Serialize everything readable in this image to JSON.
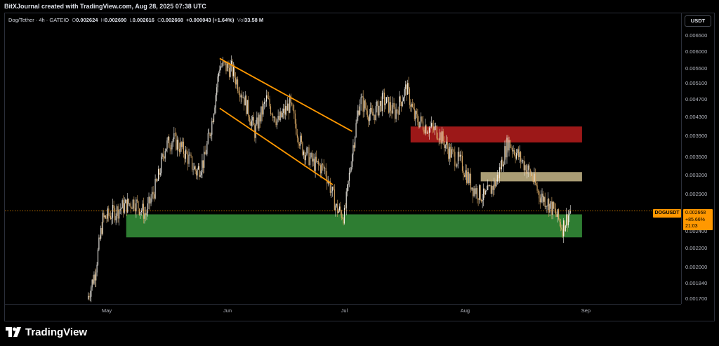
{
  "header": {
    "credit": "BitXJournal created with TradingView.com, Aug 28, 2025 07:38 UTC"
  },
  "legend": {
    "symbol": "Dog/Tether · 4h · GATEIO",
    "o_label": "O",
    "o_value": "0.002624",
    "h_label": "H",
    "h_value": "0.002690",
    "l_label": "L",
    "l_value": "0.002616",
    "c_label": "C",
    "c_value": "0.002668",
    "change": "+0.000043 (+1.64%)",
    "vol_label": "Vol",
    "vol_value": "33.58 M"
  },
  "axis": {
    "currency_button": "USDT",
    "y_ticks": [
      "0.006500",
      "0.006000",
      "0.005500",
      "0.005100",
      "0.004700",
      "0.004300",
      "0.003900",
      "0.003500",
      "0.003200",
      "0.002900",
      "0.002400",
      "0.002200",
      "0.002000",
      "0.001840",
      "0.001700"
    ],
    "x_ticks": [
      "May",
      "Jun",
      "Jul",
      "Aug",
      "Sep"
    ]
  },
  "price_marker": {
    "symbol_tag": "DOGUSDT",
    "price": "0.002668",
    "change_pct": "+85.66%",
    "countdown": "21:03"
  },
  "brand": {
    "name": "TradingView"
  },
  "colors": {
    "candle": "#e8e4dc",
    "channel": "#ff9800",
    "support_zone": "#2e7d32",
    "resistance_zone": "#b71c1c",
    "mid_zone": "#c8b88a",
    "price_line": "#ff9800"
  },
  "chart_data": {
    "type": "candlestick",
    "title": "Dog/Tether · 4h · GATEIO",
    "xlabel": "",
    "ylabel": "",
    "x_ticks": [
      "May",
      "Jun",
      "Jul",
      "Aug",
      "Sep"
    ],
    "scale": "log",
    "ylim": [
      0.00166,
      0.0073
    ],
    "close_path": [
      {
        "x": "Apr 26",
        "y": 0.0017
      },
      {
        "x": "Apr 28",
        "y": 0.00195
      },
      {
        "x": "Apr 30",
        "y": 0.00255
      },
      {
        "x": "May 2",
        "y": 0.00262
      },
      {
        "x": "May 5",
        "y": 0.00272
      },
      {
        "x": "May 8",
        "y": 0.0028
      },
      {
        "x": "May 11",
        "y": 0.00262
      },
      {
        "x": "May 14",
        "y": 0.0031
      },
      {
        "x": "May 16",
        "y": 0.0037
      },
      {
        "x": "May 18",
        "y": 0.00385
      },
      {
        "x": "May 21",
        "y": 0.0036
      },
      {
        "x": "May 24",
        "y": 0.00325
      },
      {
        "x": "May 26",
        "y": 0.00345
      },
      {
        "x": "May 28",
        "y": 0.0042
      },
      {
        "x": "May 30",
        "y": 0.0056
      },
      {
        "x": "Jun 2",
        "y": 0.0055
      },
      {
        "x": "Jun 5",
        "y": 0.0048
      },
      {
        "x": "Jun 8",
        "y": 0.004
      },
      {
        "x": "Jun 11",
        "y": 0.0047
      },
      {
        "x": "Jun 14",
        "y": 0.0042
      },
      {
        "x": "Jun 17",
        "y": 0.0046
      },
      {
        "x": "Jun 20",
        "y": 0.0037
      },
      {
        "x": "Jun 23",
        "y": 0.0034
      },
      {
        "x": "Jun 26",
        "y": 0.0033
      },
      {
        "x": "Jun 29",
        "y": 0.0027
      },
      {
        "x": "Jul 1",
        "y": 0.0026
      },
      {
        "x": "Jul 3",
        "y": 0.0036
      },
      {
        "x": "Jul 5",
        "y": 0.0047
      },
      {
        "x": "Jul 8",
        "y": 0.0043
      },
      {
        "x": "Jul 11",
        "y": 0.0047
      },
      {
        "x": "Jul 14",
        "y": 0.0044
      },
      {
        "x": "Jul 17",
        "y": 0.005
      },
      {
        "x": "Jul 19",
        "y": 0.0043
      },
      {
        "x": "Jul 22",
        "y": 0.0041
      },
      {
        "x": "Jul 25",
        "y": 0.004
      },
      {
        "x": "Jul 28",
        "y": 0.0036
      },
      {
        "x": "Jul 31",
        "y": 0.0034
      },
      {
        "x": "Aug 3",
        "y": 0.003
      },
      {
        "x": "Aug 6",
        "y": 0.00285
      },
      {
        "x": "Aug 9",
        "y": 0.0031
      },
      {
        "x": "Aug 12",
        "y": 0.0038
      },
      {
        "x": "Aug 15",
        "y": 0.0035
      },
      {
        "x": "Aug 18",
        "y": 0.0032
      },
      {
        "x": "Aug 20",
        "y": 0.0029
      },
      {
        "x": "Aug 22",
        "y": 0.0028
      },
      {
        "x": "Aug 24",
        "y": 0.00265
      },
      {
        "x": "Aug 26",
        "y": 0.00245
      },
      {
        "x": "Aug 28",
        "y": 0.002668
      }
    ],
    "zones": [
      {
        "type": "support",
        "low": 0.00233,
        "high": 0.00262
      },
      {
        "type": "resistance",
        "low": 0.00378,
        "high": 0.0041
      },
      {
        "type": "intermediate",
        "low": 0.0031,
        "high": 0.00325
      }
    ],
    "channel": {
      "upper": [
        {
          "x": "May 30",
          "y": 0.0058
        },
        {
          "x": "Jul 3",
          "y": 0.004
        }
      ],
      "lower": [
        {
          "x": "May 30",
          "y": 0.0045
        },
        {
          "x": "Jun 28",
          "y": 0.00305
        }
      ]
    },
    "last_price": 0.002668
  }
}
